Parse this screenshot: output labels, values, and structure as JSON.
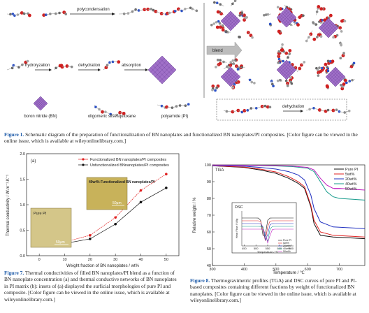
{
  "figure1": {
    "reaction_labels": {
      "polycondensation": "polycondensation",
      "hydrolyzation": "hydrolyzation",
      "dehydration": "dehydration",
      "absorption": "absorption",
      "blend": "blend",
      "dehydration_legend": "dehydration"
    },
    "legend": {
      "boron_nitride": "boron nitride (BN)",
      "oligomeric": "oligomeric silsesquioxane",
      "polyimide": "polyamide (PI)"
    },
    "caption_label": "Figure 1.",
    "caption_text": "Schematic diagram of the preparation of functionalization of BN nanoplates and functionalized BN nanoplates/PI composites. [Color figure can be viewed in the online issue, which is available at wileyonlinelibrary.com.]"
  },
  "figure7": {
    "panel_label": "(a)",
    "inset_right_title": "40wt% Functionalized BN nanoplates/PI",
    "inset_right_scale": "50μm",
    "inset_left_title": "Pure PI",
    "inset_left_scale": "50μm",
    "caption_label": "Figure 7.",
    "caption_text": "Thermal conductivities of filled BN nanoplates/PI blend as a function of BN nanoplate concentration (a) and thermal conductive networks of BN nanoplates in PI matrix (b): insets of (a) displayed the surficial morphologies of pure PI and composite. [Color figure can be viewed in the online issue, which is available at wileyonlinelibrary.com.]",
    "chart_data": {
      "type": "line",
      "xlabel": "Weight fraction of BN nanoplates / wt%",
      "ylabel": "Thermal conductivity / W.m⁻¹.K⁻¹",
      "xlim": [
        -5,
        55
      ],
      "ylim": [
        0,
        2.0
      ],
      "xticks": [
        "0",
        "10",
        "20",
        "30",
        "40",
        "50"
      ],
      "yticks": [
        "0.0",
        "0.5",
        "1.0",
        "1.5",
        "2.0"
      ],
      "x": [
        0,
        5,
        10,
        20,
        30,
        40,
        50
      ],
      "series": [
        {
          "name": "Functionalized BN nanoplates/PI composites",
          "color": "#e02020",
          "marker": "circle",
          "values": [
            0.2,
            0.23,
            0.27,
            0.4,
            0.75,
            1.28,
            1.6
          ]
        },
        {
          "name": "Unfunctionalized BNnanoplates/PI composites",
          "color": "#111111",
          "marker": "circle",
          "values": [
            0.2,
            0.21,
            0.24,
            0.33,
            0.62,
            1.05,
            1.33
          ]
        }
      ],
      "legend": "top-right",
      "grid": false
    }
  },
  "figure8": {
    "panel_label": "TGA",
    "inset_label": "DSC",
    "caption_label": "Figure 8.",
    "caption_text": "Thermogravimetric profiles (TGA) and DSC curves of pure PI and PI-based composites containing different fractions by weight of functionalized BN nanoplates. [Color figure can be viewed in the online issue, which is available at wileyonlinelibrary.com.]",
    "chart_data": {
      "type": "line",
      "xlabel": "Temperature / ℃",
      "ylabel": "Relative weight / %",
      "xlim": [
        300,
        780
      ],
      "ylim": [
        40,
        100
      ],
      "xticks": [
        "300",
        "400",
        "500",
        "600",
        "700"
      ],
      "yticks": [
        "40",
        "50",
        "60",
        "70",
        "80",
        "90",
        "100"
      ],
      "series": [
        {
          "name": "Pure PI",
          "color": "#111111",
          "x": [
            300,
            400,
            450,
            500,
            540,
            570,
            590,
            610,
            620,
            640,
            680,
            780
          ],
          "values": [
            99.5,
            98.5,
            97,
            95,
            92,
            89,
            86,
            75,
            65,
            58,
            57,
            56
          ]
        },
        {
          "name": "5wt%",
          "color": "#e02020",
          "x": [
            300,
            400,
            450,
            500,
            540,
            570,
            590,
            610,
            620,
            640,
            680,
            780
          ],
          "values": [
            99.5,
            98.7,
            97.5,
            95.8,
            93,
            90,
            87,
            76,
            67,
            60,
            58,
            57
          ]
        },
        {
          "name": "20wt%",
          "color": "#2030c0",
          "x": [
            300,
            400,
            450,
            500,
            540,
            570,
            590,
            610,
            620,
            640,
            680,
            780
          ],
          "values": [
            99.6,
            99.2,
            98.5,
            97.5,
            96,
            94,
            91,
            82,
            74,
            66,
            63,
            62
          ]
        },
        {
          "name": "40wt%",
          "color": "#139a8a",
          "x": [
            300,
            400,
            500,
            550,
            600,
            620,
            640,
            660,
            680,
            700,
            780
          ],
          "values": [
            99.8,
            99.7,
            99.4,
            99,
            98,
            96,
            90,
            84,
            81,
            80,
            79
          ]
        },
        {
          "name": "50wt%",
          "color": "#c020c0",
          "x": [
            300,
            400,
            500,
            550,
            600,
            620,
            640,
            660,
            680,
            700,
            780
          ],
          "values": [
            99.9,
            99.8,
            99.6,
            99.3,
            98.5,
            97,
            92,
            88,
            86,
            86,
            85
          ]
        }
      ],
      "legend": "top-right",
      "grid": false,
      "inset": {
        "label": "DSC",
        "xlabel": "Temperature / ℃",
        "ylabel": "Heat Flow / W/g",
        "xticks": [
          "450",
          "500",
          "550",
          "600",
          "650"
        ],
        "legend": [
          "Pure PI",
          "5wt%",
          "20wt%",
          "40wt%",
          "50wt%"
        ]
      }
    }
  }
}
